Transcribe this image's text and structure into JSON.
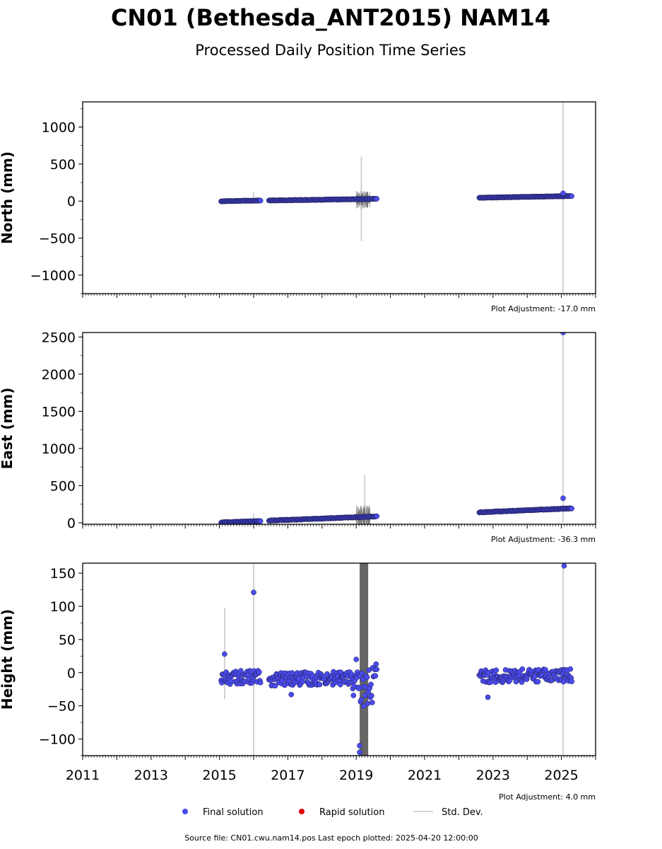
{
  "title": "CN01 (Bethesda_ANT2015) NAM14",
  "subtitle": "Processed Daily Position Time Series",
  "footer": "Source file: CN01.cwu.nam14.pos  Last epoch plotted: 2025-04-20 12:00:00",
  "colors": {
    "final": "#4b4bef",
    "rapid": "#e00000",
    "std": "#c8c8c8"
  },
  "legend": [
    {
      "key": "final",
      "label": "Final solution"
    },
    {
      "key": "rapid",
      "label": "Rapid solution"
    },
    {
      "key": "std",
      "label": "Std. Dev."
    }
  ],
  "chart_data": [
    {
      "type": "scatter",
      "ylabel": "North (mm)",
      "adjustment": "Plot Adjustment: -17.0 mm",
      "xlim": [
        2011,
        2026
      ],
      "ylim": [
        -1250,
        1340
      ],
      "yticks": [
        -1000,
        -500,
        0,
        500,
        1000
      ],
      "ytick_labels": [
        "−1000",
        "−500",
        "0",
        "500",
        "1000"
      ],
      "series": [
        {
          "segments": [
            {
              "start": 2015.05,
              "end": 2016.2,
              "y0": -2,
              "y1": 8,
              "noise": 3
            },
            {
              "start": 2016.45,
              "end": 2019.4,
              "y0": 8,
              "y1": 28,
              "noise": 3
            },
            {
              "start": 2019.4,
              "end": 2019.6,
              "y0": 28,
              "y1": 30,
              "noise": 4
            },
            {
              "start": 2022.6,
              "end": 2025.3,
              "y0": 45,
              "y1": 68,
              "noise": 3
            }
          ],
          "outliers": [
            {
              "x": 2025.05,
              "y": 105
            }
          ]
        }
      ],
      "std": [
        {
          "x": 2019.15,
          "y0": -540,
          "y1": 600
        },
        {
          "x": 2025.05,
          "y0": -1250,
          "y1": 1340
        },
        {
          "x": 2016.0,
          "y0": -20,
          "y1": 120
        }
      ],
      "std_band": {
        "start": 2019.0,
        "end": 2019.4,
        "amp": 250
      }
    },
    {
      "type": "scatter",
      "ylabel": "East (mm)",
      "adjustment": "Plot Adjustment: -36.3 mm",
      "xlim": [
        2011,
        2026
      ],
      "ylim": [
        -20,
        2560
      ],
      "yticks": [
        0,
        500,
        1000,
        1500,
        2000,
        2500
      ],
      "ytick_labels": [
        "0",
        "500",
        "1000",
        "1500",
        "2000",
        "2500"
      ],
      "series": [
        {
          "segments": [
            {
              "start": 2015.05,
              "end": 2016.2,
              "y0": 5,
              "y1": 22,
              "noise": 4
            },
            {
              "start": 2016.45,
              "end": 2019.6,
              "y0": 30,
              "y1": 85,
              "noise": 4
            },
            {
              "start": 2022.6,
              "end": 2025.3,
              "y0": 140,
              "y1": 195,
              "noise": 4
            }
          ],
          "outliers": [
            {
              "x": 2025.05,
              "y": 330
            },
            {
              "x": 2025.05,
              "y": 2560
            }
          ]
        }
      ],
      "std": [
        {
          "x": 2019.25,
          "y0": 40,
          "y1": 640
        },
        {
          "x": 2025.05,
          "y0": 0,
          "y1": 2560
        },
        {
          "x": 2016.0,
          "y0": 0,
          "y1": 125
        }
      ],
      "std_band": {
        "start": 2019.0,
        "end": 2019.4,
        "amp": 300
      }
    },
    {
      "type": "scatter",
      "ylabel": "Height (mm)",
      "adjustment": "Plot Adjustment: 4.0 mm",
      "xlim": [
        2011,
        2026
      ],
      "ylim": [
        -125,
        165
      ],
      "yticks": [
        -100,
        -50,
        0,
        50,
        100,
        150
      ],
      "ytick_labels": [
        "−100",
        "−50",
        "0",
        "50",
        "100",
        "150"
      ],
      "xticks": [
        2011,
        2013,
        2015,
        2017,
        2019,
        2021,
        2023,
        2025
      ],
      "series": [
        {
          "segments": [
            {
              "start": 2015.05,
              "end": 2016.2,
              "y0": -8,
              "y1": -6,
              "noise": 10
            },
            {
              "start": 2016.45,
              "end": 2018.9,
              "y0": -10,
              "y1": -8,
              "noise": 10
            },
            {
              "start": 2018.9,
              "end": 2019.6,
              "y0": -30,
              "y1": -15,
              "noise": 30
            },
            {
              "start": 2022.6,
              "end": 2025.3,
              "y0": -5,
              "y1": -4,
              "noise": 10
            }
          ],
          "outliers": [
            {
              "x": 2016.0,
              "y": 121
            },
            {
              "x": 2025.08,
              "y": 161
            },
            {
              "x": 2015.15,
              "y": 28
            },
            {
              "x": 2022.85,
              "y": -37
            },
            {
              "x": 2017.1,
              "y": -33
            },
            {
              "x": 2019.1,
              "y": -110
            },
            {
              "x": 2019.1,
              "y": -120
            },
            {
              "x": 2019.0,
              "y": 20
            }
          ]
        }
      ],
      "std": [
        {
          "x": 2015.15,
          "y0": -40,
          "y1": 98
        },
        {
          "x": 2016.0,
          "y0": -125,
          "y1": 165
        },
        {
          "x": 2025.05,
          "y0": -125,
          "y1": 165
        }
      ],
      "std_fill": {
        "start": 2019.1,
        "end": 2019.35,
        "color": "#666666"
      }
    }
  ]
}
